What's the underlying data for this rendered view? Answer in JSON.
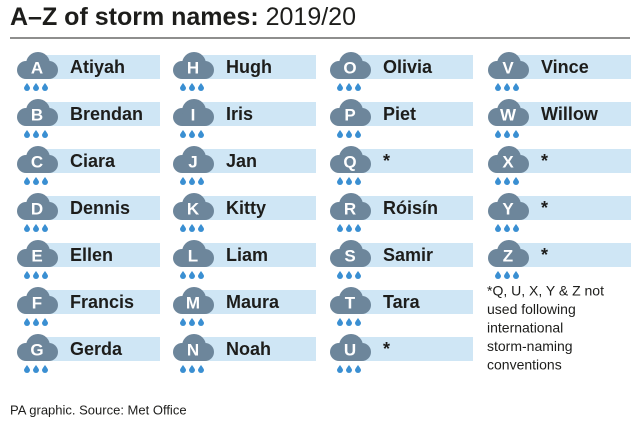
{
  "header": {
    "title_bold": "A–Z of storm names:",
    "title_year": "2019/20"
  },
  "entries": [
    {
      "letter": "A",
      "name": "Atiyah"
    },
    {
      "letter": "B",
      "name": "Brendan"
    },
    {
      "letter": "C",
      "name": "Ciara"
    },
    {
      "letter": "D",
      "name": "Dennis"
    },
    {
      "letter": "E",
      "name": "Ellen"
    },
    {
      "letter": "F",
      "name": "Francis"
    },
    {
      "letter": "G",
      "name": "Gerda"
    },
    {
      "letter": "H",
      "name": "Hugh"
    },
    {
      "letter": "I",
      "name": "Iris"
    },
    {
      "letter": "J",
      "name": "Jan"
    },
    {
      "letter": "K",
      "name": "Kitty"
    },
    {
      "letter": "L",
      "name": "Liam"
    },
    {
      "letter": "M",
      "name": "Maura"
    },
    {
      "letter": "N",
      "name": "Noah"
    },
    {
      "letter": "O",
      "name": "Olivia"
    },
    {
      "letter": "P",
      "name": "Piet"
    },
    {
      "letter": "Q",
      "name": "*"
    },
    {
      "letter": "R",
      "name": "Róisín"
    },
    {
      "letter": "S",
      "name": "Samir"
    },
    {
      "letter": "T",
      "name": "Tara"
    },
    {
      "letter": "U",
      "name": "*"
    },
    {
      "letter": "V",
      "name": "Vince"
    },
    {
      "letter": "W",
      "name": "Willow"
    },
    {
      "letter": "X",
      "name": "*"
    },
    {
      "letter": "Y",
      "name": "*"
    },
    {
      "letter": "Z",
      "name": "*"
    }
  ],
  "note": [
    "*Q, U, X, Y & Z not",
    "used following",
    "international",
    "storm-naming",
    "conventions"
  ],
  "source": "PA graphic. Source: Met Office"
}
